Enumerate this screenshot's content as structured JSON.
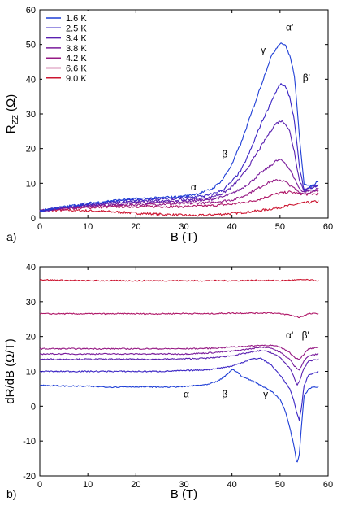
{
  "chart_data": [
    {
      "type": "line",
      "panel_label": "a)",
      "xlabel": "B (T)",
      "ylabel_main": "R",
      "ylabel_sub": "ZZ",
      "ylabel_unit": "(Ω)",
      "xlim": [
        0,
        60
      ],
      "ylim": [
        0,
        60
      ],
      "xticks": [
        0,
        10,
        20,
        30,
        40,
        50,
        60
      ],
      "yticks": [
        0,
        10,
        20,
        30,
        40,
        50,
        60
      ],
      "grid": false,
      "legend_position": "top-left",
      "annotations": [
        {
          "text": "α",
          "x": 32,
          "y": 8
        },
        {
          "text": "β",
          "x": 38.5,
          "y": 17.5
        },
        {
          "text": "γ",
          "x": 46.5,
          "y": 47.5
        },
        {
          "text": "α'",
          "x": 52,
          "y": 54
        },
        {
          "text": "β'",
          "x": 55.5,
          "y": 39.5
        }
      ],
      "series": [
        {
          "name": "1.6 K",
          "color": "#1f3fd6",
          "x": [
            0,
            2,
            5,
            10,
            15,
            20,
            25,
            30,
            33,
            36,
            38,
            40,
            42,
            44,
            46,
            47,
            48,
            49,
            50,
            51,
            52,
            53,
            54,
            55,
            56,
            57,
            58
          ],
          "y": [
            2,
            2.6,
            3.2,
            4.2,
            5,
            5.5,
            5.8,
            6.3,
            7,
            8.5,
            11,
            15.5,
            22,
            30,
            38,
            42,
            46,
            48.5,
            50.5,
            50,
            47,
            41,
            24,
            10,
            9,
            9.5,
            11
          ]
        },
        {
          "name": "2.5 K",
          "color": "#3a24c4",
          "x": [
            0,
            2,
            5,
            10,
            15,
            20,
            25,
            30,
            35,
            38,
            40,
            42,
            44,
            46,
            48,
            49,
            50,
            51,
            52,
            53,
            54,
            55,
            56,
            57,
            58
          ],
          "y": [
            2,
            2.5,
            3,
            4,
            4.7,
            5.2,
            5.5,
            5.8,
            6.5,
            8,
            10.5,
            14,
            20,
            27,
            33,
            36,
            38.5,
            38,
            35,
            28,
            15,
            8,
            8.5,
            9,
            9.5
          ]
        },
        {
          "name": "3.4 K",
          "color": "#5a20b0",
          "x": [
            0,
            2,
            5,
            10,
            15,
            20,
            25,
            30,
            35,
            38,
            40,
            42,
            44,
            46,
            48,
            49,
            50,
            51,
            52,
            53,
            54,
            55,
            56,
            57,
            58
          ],
          "y": [
            2,
            2.5,
            3,
            3.8,
            4.3,
            4.7,
            5,
            5.2,
            5.8,
            7,
            9,
            12,
            16,
            20.5,
            25,
            27,
            28,
            27.5,
            25,
            19,
            11,
            8,
            8.5,
            9,
            9.5
          ]
        },
        {
          "name": "3.8 K",
          "color": "#7a1c9c",
          "x": [
            0,
            2,
            5,
            10,
            15,
            20,
            25,
            30,
            35,
            38,
            40,
            42,
            44,
            46,
            48,
            49,
            50,
            51,
            52,
            53,
            54,
            55,
            56,
            57,
            58
          ],
          "y": [
            2,
            2.4,
            2.9,
            3.5,
            4,
            4.3,
            4.5,
            4.8,
            5.2,
            6,
            7,
            8.5,
            10.5,
            13,
            15,
            16.3,
            16.8,
            16,
            14,
            11.5,
            8.5,
            7.5,
            8,
            8,
            8.5
          ]
        },
        {
          "name": "4.2 K",
          "color": "#961a84",
          "x": [
            0,
            2,
            5,
            10,
            15,
            20,
            25,
            30,
            35,
            40,
            42,
            44,
            46,
            48,
            50,
            51,
            52,
            53,
            54,
            55,
            56,
            57,
            58
          ],
          "y": [
            2,
            2.4,
            2.8,
            3.3,
            3.6,
            3.8,
            4,
            4.1,
            4.4,
            5.2,
            6,
            7.5,
            9,
            10.5,
            11,
            10.5,
            9.5,
            8.5,
            7.5,
            7,
            7.2,
            7.5,
            7.8
          ]
        },
        {
          "name": "6.6 K",
          "color": "#b01868",
          "x": [
            0,
            2,
            5,
            10,
            15,
            20,
            25,
            30,
            35,
            40,
            44,
            46,
            48,
            50,
            52,
            54,
            56,
            58
          ],
          "y": [
            2,
            2.3,
            2.6,
            3,
            3.2,
            3.3,
            3.3,
            3.3,
            3.5,
            4,
            4.8,
            5.5,
            6.5,
            7.2,
            7.5,
            7,
            6.8,
            7
          ]
        },
        {
          "name": "9.0 K",
          "color": "#cc1530",
          "x": [
            0,
            2,
            5,
            10,
            15,
            20,
            25,
            30,
            33,
            35,
            40,
            45,
            48,
            50,
            52,
            54,
            56,
            58
          ],
          "y": [
            2,
            2.2,
            2.3,
            2.1,
            1.8,
            1.4,
            1.1,
            0.8,
            0.7,
            0.9,
            1.3,
            2,
            2.6,
            3.1,
            3.6,
            4.1,
            4.5,
            4.8
          ]
        }
      ]
    },
    {
      "type": "line",
      "panel_label": "b)",
      "xlabel": "B (T)",
      "ylabel": "dR/dB (Ω/T)",
      "xlim": [
        0,
        60
      ],
      "ylim": [
        -20,
        40
      ],
      "xticks": [
        0,
        10,
        20,
        30,
        40,
        50,
        60
      ],
      "yticks": [
        -20,
        -10,
        0,
        10,
        20,
        30,
        40
      ],
      "grid": false,
      "annotations": [
        {
          "text": "α",
          "x": 30.5,
          "y": 2.5
        },
        {
          "text": "β",
          "x": 38.5,
          "y": 2.5
        },
        {
          "text": "γ",
          "x": 47,
          "y": 2.5
        },
        {
          "text": "α'",
          "x": 52,
          "y": 19.5
        },
        {
          "text": "β'",
          "x": 55.3,
          "y": 19.5
        }
      ],
      "series": [
        {
          "name": "1.6 K",
          "color": "#1f3fd6",
          "x": [
            0,
            5,
            10,
            15,
            20,
            25,
            30,
            33,
            35,
            37,
            38,
            39,
            40,
            41,
            42,
            44,
            46,
            48,
            50,
            51,
            52,
            53,
            53.5,
            54,
            54.5,
            55,
            56,
            57,
            58
          ],
          "y": [
            6,
            5.8,
            5.7,
            5.5,
            5.6,
            5.5,
            5.6,
            6,
            6.2,
            7.2,
            8,
            9.2,
            10.5,
            10,
            8.5,
            7.5,
            6,
            4.5,
            2,
            -1,
            -6,
            -12,
            -16.5,
            -14,
            -5,
            3,
            5,
            5.5,
            5.5
          ]
        },
        {
          "name": "2.5 K",
          "color": "#3a24c4",
          "x": [
            0,
            5,
            10,
            15,
            20,
            25,
            30,
            35,
            40,
            42,
            44,
            46,
            48,
            50,
            51,
            52,
            53,
            53.5,
            54,
            54.5,
            55,
            56,
            58
          ],
          "y": [
            10,
            10,
            10,
            10,
            10,
            10,
            10.2,
            10.5,
            11.5,
            12.5,
            13.5,
            13.8,
            12,
            9,
            7,
            5,
            1,
            -2,
            -4,
            0,
            6,
            9,
            10
          ]
        },
        {
          "name": "3.4 K",
          "color": "#5a20b0",
          "x": [
            0,
            5,
            10,
            15,
            20,
            25,
            30,
            35,
            40,
            44,
            46,
            48,
            50,
            52,
            53,
            53.5,
            54,
            55,
            56,
            58
          ],
          "y": [
            13.5,
            13.5,
            13.5,
            13.5,
            13.5,
            13.5,
            13.6,
            13.8,
            14.5,
            15.5,
            16,
            15.5,
            14,
            11,
            8,
            6,
            7,
            11,
            13,
            13.5
          ]
        },
        {
          "name": "3.8 K",
          "color": "#7a1c9c",
          "x": [
            0,
            5,
            10,
            15,
            20,
            25,
            30,
            35,
            40,
            44,
            46,
            48,
            50,
            52,
            53,
            54,
            55,
            56,
            58
          ],
          "y": [
            15,
            15,
            15,
            15,
            15,
            15,
            15,
            15.3,
            15.8,
            16.5,
            17,
            16.8,
            15.5,
            13.5,
            11.5,
            10.5,
            13,
            14.5,
            15
          ]
        },
        {
          "name": "4.2 K",
          "color": "#961a84",
          "x": [
            0,
            5,
            10,
            15,
            20,
            25,
            30,
            35,
            40,
            44,
            46,
            48,
            50,
            52,
            53,
            54,
            55,
            56,
            58
          ],
          "y": [
            16.5,
            16.5,
            16.5,
            16.5,
            16.5,
            16.5,
            16.5,
            16.6,
            17,
            17.3,
            17.5,
            17.5,
            17,
            15.5,
            14,
            13.5,
            15,
            16.5,
            16.8
          ]
        },
        {
          "name": "6.6 K",
          "color": "#b01868",
          "x": [
            0,
            5,
            10,
            15,
            20,
            25,
            30,
            35,
            40,
            45,
            48,
            50,
            52,
            54,
            55,
            56,
            58
          ],
          "y": [
            26.5,
            26.5,
            26.5,
            26.5,
            26.5,
            26.5,
            26.6,
            26.5,
            26.7,
            26.7,
            26.8,
            26.5,
            26.2,
            25.5,
            26,
            26.5,
            26.6
          ]
        },
        {
          "name": "9.0 K",
          "color": "#cc1530",
          "x": [
            0,
            5,
            10,
            15,
            20,
            25,
            30,
            35,
            40,
            45,
            50,
            55,
            58
          ],
          "y": [
            36.3,
            36.1,
            36,
            36,
            36,
            36,
            36,
            36,
            36,
            36.1,
            36,
            36.3,
            36
          ]
        }
      ]
    }
  ]
}
